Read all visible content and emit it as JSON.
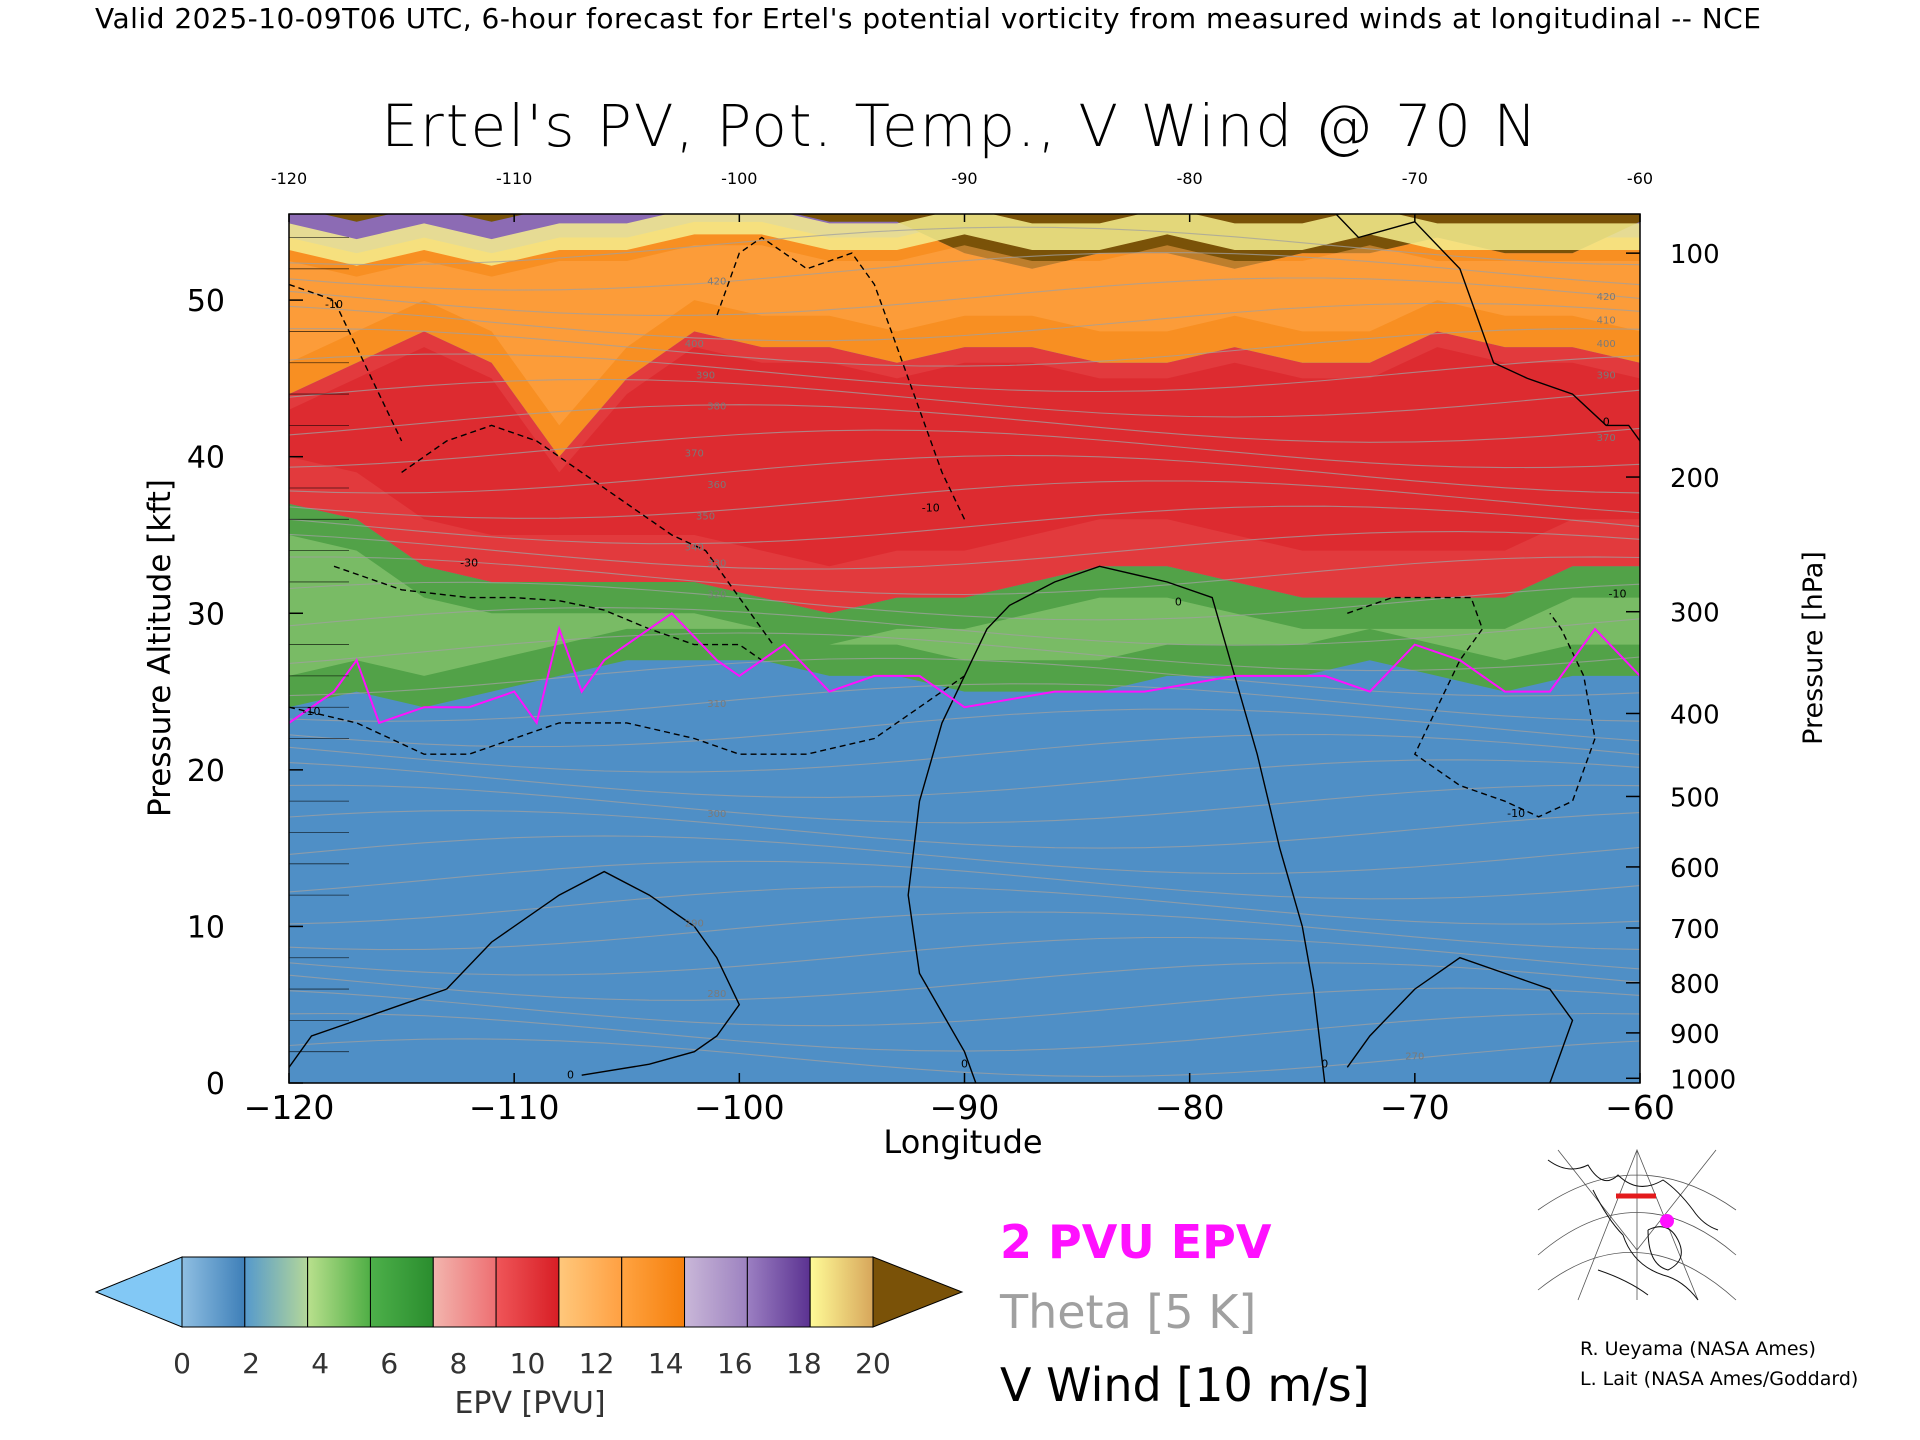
{
  "header": {
    "valid_line": "Valid 2025-10-09T06 UTC, 6-hour forecast for Ertel's potential vorticity from measured winds at longitudinal -- NCE"
  },
  "chart_data": {
    "type": "heatmap",
    "title": "Ertel's PV, Pot. Temp., V Wind @ 70 N",
    "xlabel": "Longitude",
    "ylabel_left": "Pressure Altitude [kft]",
    "ylabel_right": "Pressure [hPa]",
    "xlim": [
      -120,
      -60
    ],
    "ylim": [
      0,
      55.5
    ],
    "x_ticks": [
      -120,
      -110,
      -100,
      -90,
      -80,
      -70,
      -60
    ],
    "x_tick_labels": [
      "−120",
      "−110",
      "−100",
      "−90",
      "−80",
      "−70",
      "−60"
    ],
    "top_tick_labels": [
      "-120",
      "-110",
      "-100",
      "-90",
      "-80",
      "-70",
      "-60"
    ],
    "y_ticks": [
      0,
      10,
      20,
      30,
      40,
      50
    ],
    "y_tick_labels": [
      "0",
      "10",
      "20",
      "30",
      "40",
      "50"
    ],
    "pressure_ticks": [
      {
        "hpa": 100,
        "kft": 53.0,
        "label": "100"
      },
      {
        "hpa": 200,
        "kft": 38.7,
        "label": "200"
      },
      {
        "hpa": 300,
        "kft": 30.1,
        "label": "300"
      },
      {
        "hpa": 400,
        "kft": 23.6,
        "label": "400"
      },
      {
        "hpa": 500,
        "kft": 18.3,
        "label": "500"
      },
      {
        "hpa": 600,
        "kft": 13.8,
        "label": "600"
      },
      {
        "hpa": 700,
        "kft": 9.9,
        "label": "700"
      },
      {
        "hpa": 800,
        "kft": 6.4,
        "label": "800"
      },
      {
        "hpa": 900,
        "kft": 3.2,
        "label": "900"
      },
      {
        "hpa": 1000,
        "kft": 0.3,
        "label": "1000"
      }
    ],
    "epv_field": {
      "x": [
        -120,
        -117,
        -114,
        -111,
        -108,
        -105,
        -102,
        -99,
        -96,
        -93,
        -90,
        -87,
        -84,
        -81,
        -78,
        -75,
        -72,
        -69,
        -66,
        -63,
        -60
      ],
      "boundaries_kft": {
        "top_2pvu": [
          24,
          25,
          24,
          25,
          26,
          27,
          27,
          27,
          26,
          26,
          25,
          25,
          25,
          26,
          26,
          26,
          27,
          26,
          25,
          26,
          26
        ],
        "top_6pvu": [
          37,
          36,
          33,
          32,
          32,
          32,
          32,
          31,
          30,
          31,
          31,
          32,
          33,
          33,
          32,
          31,
          31,
          31,
          31,
          33,
          33
        ],
        "top_12pvu": [
          44,
          46,
          48,
          46,
          40,
          45,
          48,
          47,
          47,
          46,
          47,
          47,
          46,
          46,
          47,
          46,
          46,
          48,
          47,
          47,
          46
        ],
        "top_18pvu": [
          54,
          53,
          54,
          53,
          54,
          54,
          55,
          55,
          54,
          54,
          55,
          54,
          54,
          55,
          54,
          54,
          55,
          54,
          54,
          54,
          54
        ],
        "top_20pvu": [
          56,
          55,
          56,
          55,
          56,
          56,
          56,
          56,
          55,
          55,
          53,
          52,
          53,
          53,
          52,
          53,
          53,
          54,
          53,
          53,
          55
        ]
      }
    },
    "pv_2pvu_line": {
      "x": [
        -120,
        -118,
        -117,
        -116,
        -114,
        -112,
        -110,
        -109,
        -108,
        -107,
        -106,
        -104,
        -103,
        -101,
        -100,
        -98,
        -96,
        -94,
        -92,
        -90,
        -86,
        -82,
        -78,
        -74,
        -72,
        -70,
        -68,
        -66,
        -64,
        -62,
        -60
      ],
      "y": [
        23,
        25,
        27,
        23,
        24,
        24,
        25,
        23,
        29,
        25,
        27,
        29,
        30,
        27,
        26,
        28,
        25,
        26,
        26,
        24,
        25,
        25,
        26,
        26,
        25,
        28,
        27,
        25,
        25,
        29,
        26
      ]
    },
    "v_wind_contours": [
      {
        "level": "0",
        "style": "solid",
        "x": [
          -113,
          -111,
          -108,
          -106,
          -104,
          -102,
          -101,
          -100,
          -101,
          -102,
          -104,
          -107
        ],
        "y": [
          6,
          9,
          12,
          13.5,
          12,
          10,
          8,
          5,
          3,
          2,
          1.2,
          0.5
        ]
      },
      {
        "level": "0",
        "style": "solid",
        "x": [
          -89.5,
          -90,
          -92,
          -92.5,
          -92,
          -91,
          -90,
          -89,
          -88,
          -86,
          -84,
          -81,
          -79,
          -78,
          -77,
          -76,
          -75,
          -74.5,
          -74
        ],
        "y": [
          0,
          2,
          7,
          12,
          18,
          23,
          26,
          29,
          30.5,
          32,
          33,
          32,
          31,
          26,
          21,
          15,
          10,
          6,
          0
        ]
      },
      {
        "level": "0",
        "style": "solid",
        "x": [
          -73,
          -72,
          -70,
          -68,
          -66,
          -64,
          -63,
          -63.5,
          -64
        ],
        "y": [
          1,
          3,
          6,
          8,
          7,
          6,
          4,
          2,
          0
        ]
      },
      {
        "level": "0",
        "style": "solid",
        "x": [
          -120,
          -119,
          -117,
          -115,
          -113
        ],
        "y": [
          1,
          3,
          4,
          5,
          6
        ]
      },
      {
        "level": "0",
        "style": "solid",
        "x": [
          -73.5,
          -72.5,
          -70,
          -68,
          -66.5,
          -65,
          -63,
          -61.5,
          -60.5,
          -60
        ],
        "y": [
          55.5,
          54,
          55,
          52,
          46,
          45,
          44,
          42,
          42,
          41
        ]
      },
      {
        "level": "-10",
        "style": "dashed",
        "x": [
          -120,
          -117,
          -114,
          -112,
          -110,
          -108,
          -105,
          -102,
          -100,
          -97,
          -94,
          -92,
          -90
        ],
        "y": [
          24,
          23,
          21,
          21,
          22,
          23,
          23,
          22,
          21,
          21,
          22,
          24,
          26
        ]
      },
      {
        "level": "-10",
        "style": "dashed",
        "x": [
          -90,
          -91,
          -92,
          -93,
          -94,
          -95,
          -97,
          -99,
          -100,
          -101
        ],
        "y": [
          36,
          39,
          43,
          47,
          51,
          53,
          52,
          54,
          53,
          49
        ]
      },
      {
        "level": "-10",
        "style": "dashed",
        "x": [
          -120,
          -118,
          -117,
          -116,
          -115
        ],
        "y": [
          51,
          50,
          47,
          44,
          41
        ]
      },
      {
        "level": "-10",
        "style": "dashed",
        "x": [
          -73,
          -71,
          -69,
          -67.5,
          -67,
          -68,
          -69,
          -70,
          -68,
          -66,
          -64.5,
          -63,
          -62,
          -62.5,
          -63.5,
          -64
        ],
        "y": [
          30,
          31,
          31,
          31,
          29,
          27,
          24,
          21,
          19,
          18,
          17,
          18,
          22,
          26,
          29,
          30
        ]
      },
      {
        "level": "-30",
        "style": "dashed",
        "x": [
          -118,
          -115,
          -112,
          -110,
          -108,
          -106,
          -104,
          -102,
          -100,
          -99
        ],
        "y": [
          33,
          31.5,
          31,
          31,
          30.8,
          30.2,
          29,
          28,
          28,
          27
        ]
      },
      {
        "level": "-30",
        "style": "dashed",
        "x": [
          -115,
          -113,
          -111,
          -109,
          -107,
          -105,
          -103,
          -101.5,
          -100,
          -98.5
        ],
        "y": [
          39,
          41,
          42,
          41,
          39,
          37,
          35,
          34,
          31,
          28
        ]
      }
    ],
    "theta_levels": [
      "270",
      "280",
      "290",
      "300",
      "310",
      "320",
      "330",
      "340",
      "350",
      "360",
      "370",
      "380",
      "390",
      "400",
      "410",
      "420"
    ],
    "theta_labels_shown": [
      {
        "text": "420",
        "x": -101,
        "y": 51
      },
      {
        "text": "400",
        "x": -102,
        "y": 47
      },
      {
        "text": "390",
        "x": -101.5,
        "y": 45
      },
      {
        "text": "380",
        "x": -101,
        "y": 43
      },
      {
        "text": "370",
        "x": -102,
        "y": 40
      },
      {
        "text": "360",
        "x": -101,
        "y": 38
      },
      {
        "text": "350",
        "x": -101.5,
        "y": 36
      },
      {
        "text": "340",
        "x": -102,
        "y": 34
      },
      {
        "text": "330",
        "x": -101,
        "y": 33
      },
      {
        "text": "320",
        "x": -101,
        "y": 31
      },
      {
        "text": "310",
        "x": -101,
        "y": 24
      },
      {
        "text": "300",
        "x": -101,
        "y": 17
      },
      {
        "text": "290",
        "x": -102,
        "y": 10
      },
      {
        "text": "280",
        "x": -101,
        "y": 5.5
      },
      {
        "text": "270",
        "x": -70,
        "y": 1.5
      },
      {
        "text": "420",
        "x": -61.5,
        "y": 50
      },
      {
        "text": "410",
        "x": -61.5,
        "y": 48.5
      },
      {
        "text": "400",
        "x": -61.5,
        "y": 47
      },
      {
        "text": "390",
        "x": -61.5,
        "y": 45
      },
      {
        "text": "370",
        "x": -61.5,
        "y": 41
      }
    ],
    "wind_contour_labels": [
      {
        "text": "-10",
        "x": -118,
        "y": 49.5
      },
      {
        "text": "-10",
        "x": -91.5,
        "y": 36.5
      },
      {
        "text": "-10",
        "x": -65.5,
        "y": 17
      },
      {
        "text": "-10",
        "x": -61,
        "y": 31
      },
      {
        "text": "-30",
        "x": -112,
        "y": 33
      },
      {
        "text": "-10",
        "x": -119,
        "y": 23.5
      },
      {
        "text": "0",
        "x": -107.5,
        "y": 0.3
      },
      {
        "text": "0",
        "x": -90,
        "y": 1
      },
      {
        "text": "0",
        "x": -74,
        "y": 1
      },
      {
        "text": "0",
        "x": -80.5,
        "y": 30.5
      },
      {
        "text": "0",
        "x": -61.5,
        "y": 42
      }
    ]
  },
  "colorbar": {
    "label": "EPV [PVU]",
    "tick_labels": [
      "0",
      "2",
      "4",
      "6",
      "8",
      "10",
      "12",
      "14",
      "16",
      "18",
      "20"
    ],
    "colors": {
      "under": "#82c8f5",
      "over": "#7a5208",
      "bins": [
        [
          "#8fbfe2",
          "#3e7fb8"
        ],
        [
          "#5599cc",
          "#b4d79a"
        ],
        [
          "#b9e08d",
          "#4fae45"
        ],
        [
          "#4db04a",
          "#2a8d2e"
        ],
        [
          "#f2b5ae",
          "#ee6f72"
        ],
        [
          "#ef5659",
          "#d81e25"
        ],
        [
          "#ffc87c",
          "#ffa042"
        ],
        [
          "#ffa341",
          "#f57f0c"
        ],
        [
          "#c9b7d8",
          "#9d82c0"
        ],
        [
          "#9b7fc2",
          "#5b3291"
        ],
        [
          "#fffb97",
          "#d7a65b"
        ]
      ]
    }
  },
  "legend": {
    "pv_line": "2 PVU EPV",
    "theta": "Theta [5 K]",
    "v_wind": "V Wind [10 m/s]",
    "colors": {
      "pv_line": "#ff10ff",
      "theta": "#a0a0a0",
      "v_wind": "#000000"
    }
  },
  "credits": [
    "R. Ueyama (NASA Ames)",
    "L. Lait (NASA Ames/Goddard)"
  ],
  "map_marker_color": "#ff10ff"
}
